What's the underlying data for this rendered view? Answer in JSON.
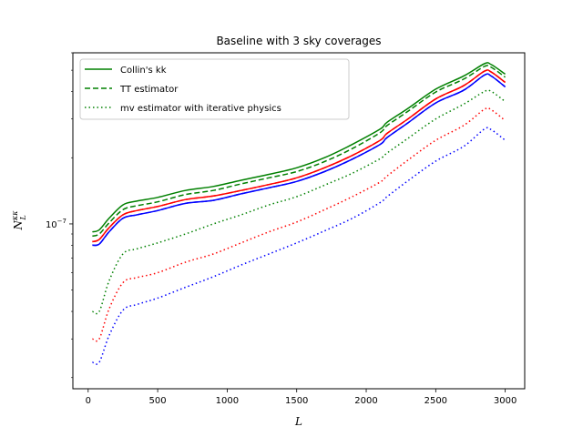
{
  "chart_data": {
    "type": "line",
    "title": "Baseline with 3 sky coverages",
    "xlabel": "L",
    "ylabel": "N_L^{κκ}",
    "xlim": [
      -110,
      3140
    ],
    "ylim_log": [
      1.78e-08,
      6e-07
    ],
    "yscale": "log",
    "grid": false,
    "legend_placement": "top-left",
    "x_ticks": [
      0,
      500,
      1000,
      1500,
      2000,
      2500,
      3000
    ],
    "x_tick_labels": [
      "0",
      "500",
      "1000",
      "1500",
      "2000",
      "2500",
      "3000"
    ],
    "y_ticks": [
      1e-07
    ],
    "y_tick_labels": [
      "10^{-7}"
    ],
    "legend": [
      {
        "label": "Collin's kk",
        "style": "solid",
        "color": "#008000"
      },
      {
        "label": "TT estimator",
        "style": "dashed",
        "color": "#008000"
      },
      {
        "label": "mv estimator with iterative physics",
        "style": "dotted",
        "color": "#008000"
      }
    ],
    "x": [
      30,
      80,
      150,
      250,
      350,
      500,
      700,
      900,
      1100,
      1300,
      1500,
      1700,
      1900,
      2100,
      2150,
      2300,
      2500,
      2700,
      2850,
      2900,
      3000
    ],
    "series": [
      {
        "color": "#008000",
        "style": "solid",
        "values": [
          9.2e-08,
          9.4e-08,
          1.06e-07,
          1.22e-07,
          1.27e-07,
          1.32e-07,
          1.42e-07,
          1.48e-07,
          1.58e-07,
          1.68e-07,
          1.8e-07,
          2e-07,
          2.3e-07,
          2.7e-07,
          2.9e-07,
          3.35e-07,
          4.1e-07,
          4.7e-07,
          5.35e-07,
          5.3e-07,
          4.8e-07
        ]
      },
      {
        "color": "#008000",
        "style": "dashed",
        "values": [
          8.8e-08,
          9e-08,
          1.01e-07,
          1.16e-07,
          1.21e-07,
          1.26e-07,
          1.36e-07,
          1.42e-07,
          1.52e-07,
          1.62e-07,
          1.73e-07,
          1.92e-07,
          2.2e-07,
          2.6e-07,
          2.8e-07,
          3.25e-07,
          3.98e-07,
          4.55e-07,
          5.2e-07,
          5.15e-07,
          4.65e-07
        ]
      },
      {
        "color": "#008000",
        "style": "dotted",
        "values": [
          4e-08,
          4e-08,
          5.5e-08,
          7.3e-08,
          7.7e-08,
          8.2e-08,
          9e-08,
          1e-07,
          1.1e-07,
          1.22e-07,
          1.33e-07,
          1.5e-07,
          1.7e-07,
          1.98e-07,
          2.1e-07,
          2.45e-07,
          3e-07,
          3.5e-07,
          4e-07,
          4e-07,
          3.6e-07
        ]
      },
      {
        "color": "#ff0000",
        "style": "solid",
        "values": [
          8.3e-08,
          8.5e-08,
          9.6e-08,
          1.1e-07,
          1.15e-07,
          1.2e-07,
          1.29e-07,
          1.34e-07,
          1.42e-07,
          1.51e-07,
          1.62e-07,
          1.8e-07,
          2.05e-07,
          2.4e-07,
          2.58e-07,
          3e-07,
          3.7e-07,
          4.25e-07,
          4.95e-07,
          4.9e-07,
          4.4e-07
        ]
      },
      {
        "color": "#ff0000",
        "style": "dashed",
        "values": [
          8.3e-08,
          8.5e-08,
          9.6e-08,
          1.1e-07,
          1.15e-07,
          1.2e-07,
          1.29e-07,
          1.34e-07,
          1.42e-07,
          1.51e-07,
          1.62e-07,
          1.8e-07,
          2.05e-07,
          2.4e-07,
          2.58e-07,
          3e-07,
          3.7e-07,
          4.25e-07,
          4.95e-07,
          4.9e-07,
          4.4e-07
        ]
      },
      {
        "color": "#ff0000",
        "style": "dotted",
        "values": [
          3e-08,
          3e-08,
          4.1e-08,
          5.4e-08,
          5.7e-08,
          6e-08,
          6.7e-08,
          7.3e-08,
          8.2e-08,
          9.2e-08,
          1.02e-07,
          1.16e-07,
          1.33e-07,
          1.55e-07,
          1.65e-07,
          1.95e-07,
          2.4e-07,
          2.8e-07,
          3.32e-07,
          3.3e-07,
          2.95e-07
        ]
      },
      {
        "color": "#0000ff",
        "style": "solid",
        "values": [
          8e-08,
          8.1e-08,
          9.2e-08,
          1.06e-07,
          1.1e-07,
          1.15e-07,
          1.24e-07,
          1.28e-07,
          1.37e-07,
          1.46e-07,
          1.56e-07,
          1.73e-07,
          1.97e-07,
          2.3e-07,
          2.47e-07,
          2.88e-07,
          3.55e-07,
          4.05e-07,
          4.75e-07,
          4.7e-07,
          4.2e-07
        ]
      },
      {
        "color": "#0000ff",
        "style": "dashed",
        "values": [
          8e-08,
          8.1e-08,
          9.2e-08,
          1.06e-07,
          1.1e-07,
          1.15e-07,
          1.24e-07,
          1.28e-07,
          1.37e-07,
          1.46e-07,
          1.56e-07,
          1.73e-07,
          1.97e-07,
          2.3e-07,
          2.47e-07,
          2.88e-07,
          3.55e-07,
          4.05e-07,
          4.75e-07,
          4.7e-07,
          4.2e-07
        ]
      },
      {
        "color": "#0000ff",
        "style": "dotted",
        "values": [
          2.35e-08,
          2.35e-08,
          3.1e-08,
          4.05e-08,
          4.3e-08,
          4.6e-08,
          5.15e-08,
          5.75e-08,
          6.5e-08,
          7.3e-08,
          8.2e-08,
          9.3e-08,
          1.06e-07,
          1.25e-07,
          1.33e-07,
          1.57e-07,
          1.93e-07,
          2.25e-07,
          2.7e-07,
          2.68e-07,
          2.4e-07
        ]
      }
    ]
  }
}
